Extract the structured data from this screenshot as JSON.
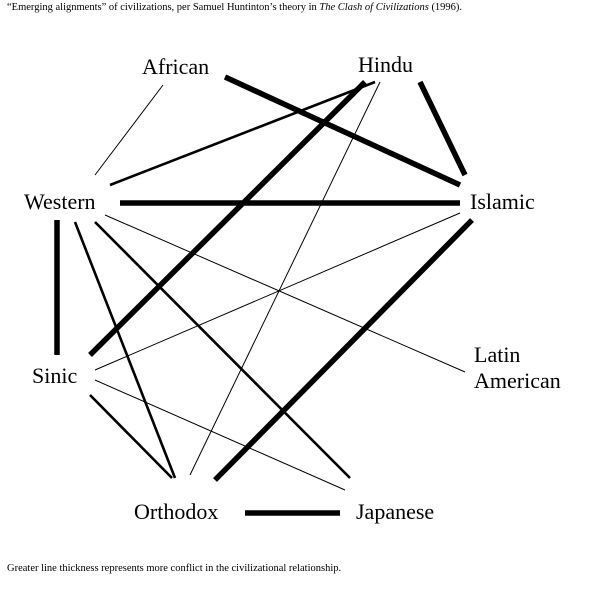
{
  "caption_top": {
    "before": "“Emerging alignments” of civilizations, per Samuel Huntinton’s theory in ",
    "title": "The Clash of Civilizations",
    "after": " (1996)."
  },
  "caption_bottom": "Greater line thickness represents more conflict in the civilizational relationship.",
  "nodes": {
    "african": "African",
    "hindu": "Hindu",
    "western": "Western",
    "islamic": "Islamic",
    "latin_1": "Latin",
    "latin_2": "American",
    "sinic": "Sinic",
    "orthodox": "Orthodox",
    "japanese": "Japanese"
  },
  "relationships": [
    {
      "from": "African",
      "to": "Western",
      "conflict": "low"
    },
    {
      "from": "African",
      "to": "Islamic",
      "conflict": "high"
    },
    {
      "from": "Hindu",
      "to": "Western",
      "conflict": "medium"
    },
    {
      "from": "Hindu",
      "to": "Sinic",
      "conflict": "high"
    },
    {
      "from": "Hindu",
      "to": "Orthodox",
      "conflict": "low"
    },
    {
      "from": "Hindu",
      "to": "Islamic",
      "conflict": "high"
    },
    {
      "from": "Western",
      "to": "Islamic",
      "conflict": "high"
    },
    {
      "from": "Western",
      "to": "Sinic",
      "conflict": "high"
    },
    {
      "from": "Western",
      "to": "Orthodox",
      "conflict": "medium"
    },
    {
      "from": "Western",
      "to": "Japanese",
      "conflict": "medium"
    },
    {
      "from": "Western",
      "to": "Latin American",
      "conflict": "low"
    },
    {
      "from": "Islamic",
      "to": "Sinic",
      "conflict": "low"
    },
    {
      "from": "Islamic",
      "to": "Orthodox",
      "conflict": "high"
    },
    {
      "from": "Sinic",
      "to": "Japanese",
      "conflict": "low"
    },
    {
      "from": "Sinic",
      "to": "Orthodox",
      "conflict": "medium"
    },
    {
      "from": "Orthodox",
      "to": "Japanese",
      "conflict": "high"
    }
  ]
}
